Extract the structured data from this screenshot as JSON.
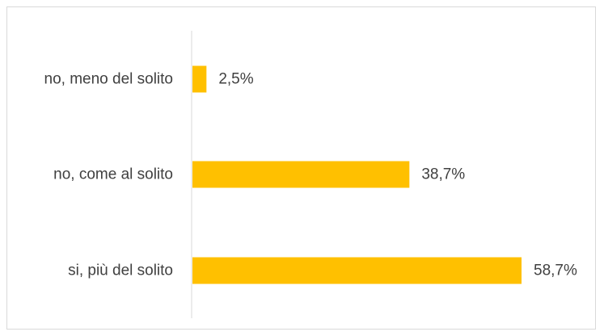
{
  "chart_data": {
    "type": "bar",
    "orientation": "horizontal",
    "categories": [
      "no, meno del solito",
      "no, come al solito",
      "si, più del solito"
    ],
    "values": [
      2.5,
      38.7,
      58.7
    ],
    "data_labels": [
      "2,5%",
      "38,7%",
      "58,7%"
    ],
    "unit": "%",
    "xlim": [
      0,
      60
    ],
    "grid": false,
    "legend": "none",
    "bar_color": "#FFC000",
    "axis_color": "#D9D9D9",
    "text_color": "#404040"
  }
}
